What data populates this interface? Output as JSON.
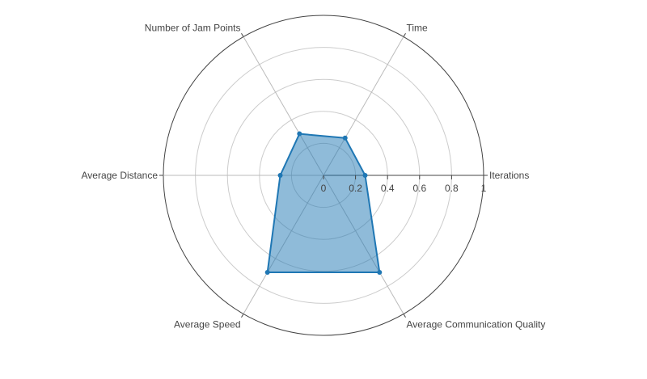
{
  "chart_data": {
    "type": "radar",
    "title": "",
    "axes": [
      "Iterations",
      "Time",
      "Number of Jam Points",
      "Average Distance",
      "Average Speed",
      "Average Communication Quality"
    ],
    "series": [
      {
        "values": [
          0.26,
          0.27,
          0.3,
          0.27,
          0.7,
          0.7
        ]
      }
    ],
    "radial_range": [
      0,
      1
    ],
    "radial_ticks": [
      "0",
      "0.2",
      "0.4",
      "0.6",
      "0.8",
      "1"
    ],
    "grid": true,
    "colors": {
      "line": "#1f77b4",
      "fill": "#1f77b4",
      "fill_opacity": 0.5,
      "grid": "#d3d3d3",
      "axis_line": "#444444",
      "label_text": "#444444"
    }
  }
}
